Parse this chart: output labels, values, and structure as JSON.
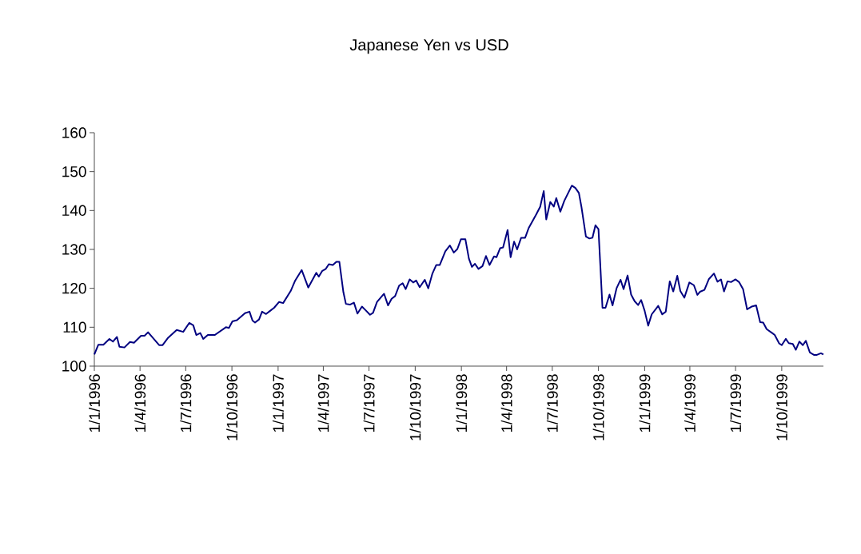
{
  "chart_data": {
    "type": "line",
    "title": "Japanese Yen vs USD",
    "x": [
      "1996-01-01",
      "1996-01-09",
      "1996-01-19",
      "1996-01-31",
      "1996-02-07",
      "1996-02-15",
      "1996-02-20",
      "1996-03-01",
      "1996-03-12",
      "1996-03-20",
      "1996-04-03",
      "1996-04-10",
      "1996-04-17",
      "1996-05-09",
      "1996-05-16",
      "1996-05-27",
      "1996-06-13",
      "1996-06-26",
      "1996-07-08",
      "1996-07-16",
      "1996-07-22",
      "1996-07-30",
      "1996-08-05",
      "1996-08-14",
      "1996-08-28",
      "1996-09-19",
      "1996-09-25",
      "1996-10-02",
      "1996-10-11",
      "1996-10-27",
      "1996-11-05",
      "1996-11-11",
      "1996-11-16",
      "1996-11-24",
      "1996-11-30",
      "1996-12-08",
      "1996-12-16",
      "1996-12-24",
      "1997-01-03",
      "1997-01-11",
      "1997-01-26",
      "1997-02-04",
      "1997-02-17",
      "1997-03-02",
      "1997-03-18",
      "1997-03-23",
      "1997-03-30",
      "1997-04-06",
      "1997-04-12",
      "1997-04-20",
      "1997-04-27",
      "1997-05-03",
      "1997-05-11",
      "1997-05-16",
      "1997-05-24",
      "1997-06-01",
      "1997-06-08",
      "1997-06-17",
      "1997-06-24",
      "1997-07-03",
      "1997-07-09",
      "1997-07-17",
      "1997-07-31",
      "1997-08-08",
      "1997-08-15",
      "1997-08-22",
      "1997-08-30",
      "1997-09-06",
      "1997-09-12",
      "1997-09-20",
      "1997-09-27",
      "1997-10-03",
      "1997-10-10",
      "1997-10-20",
      "1997-10-27",
      "1997-11-04",
      "1997-11-12",
      "1997-11-19",
      "1997-11-30",
      "1997-12-09",
      "1997-12-17",
      "1997-12-24",
      "1997-12-31",
      "1998-01-09",
      "1998-01-16",
      "1998-01-22",
      "1998-01-28",
      "1998-02-04",
      "1998-02-12",
      "1998-02-19",
      "1998-02-26",
      "1998-03-07",
      "1998-03-12",
      "1998-03-19",
      "1998-03-25",
      "1998-04-03",
      "1998-04-09",
      "1998-04-16",
      "1998-04-22",
      "1998-04-30",
      "1998-05-08",
      "1998-05-15",
      "1998-05-30",
      "1998-06-07",
      "1998-06-14",
      "1998-06-19",
      "1998-06-27",
      "1998-07-04",
      "1998-07-09",
      "1998-07-17",
      "1998-07-25",
      "1998-08-09",
      "1998-08-16",
      "1998-08-23",
      "1998-08-28",
      "1998-09-06",
      "1998-09-13",
      "1998-09-19",
      "1998-09-25",
      "1998-10-01",
      "1998-10-09",
      "1998-10-15",
      "1998-10-23",
      "1998-10-29",
      "1998-11-06",
      "1998-11-14",
      "1998-11-20",
      "1998-11-28",
      "1998-12-05",
      "1998-12-12",
      "1998-12-19",
      "1998-12-25",
      "1999-01-01",
      "1999-01-08",
      "1999-01-15",
      "1999-01-28",
      "1999-02-05",
      "1999-02-12",
      "1999-02-20",
      "1999-02-27",
      "1999-03-07",
      "1999-03-13",
      "1999-03-21",
      "1999-03-31",
      "1999-04-09",
      "1999-04-16",
      "1999-04-21",
      "1999-04-30",
      "1999-05-09",
      "1999-05-19",
      "1999-05-26",
      "1999-06-02",
      "1999-06-08",
      "1999-06-15",
      "1999-06-22",
      "1999-07-01",
      "1999-07-08",
      "1999-07-16",
      "1999-07-24",
      "1999-08-02",
      "1999-08-11",
      "1999-08-19",
      "1999-08-25",
      "1999-09-01",
      "1999-09-12",
      "1999-09-17",
      "1999-09-26",
      "1999-10-01",
      "1999-10-09",
      "1999-10-15",
      "1999-10-23",
      "1999-10-29",
      "1999-11-05",
      "1999-11-12",
      "1999-11-18",
      "1999-11-26",
      "1999-12-04",
      "1999-12-10",
      "1999-12-18",
      "1999-12-23"
    ],
    "values": [
      103,
      105.5,
      105.5,
      107,
      106.3,
      107.5,
      105,
      104.8,
      106.2,
      106,
      107.8,
      107.8,
      108.7,
      105.4,
      105.4,
      107.3,
      109.3,
      108.8,
      111.1,
      110.5,
      108,
      108.5,
      107,
      108,
      108,
      110,
      109.8,
      111.5,
      111.8,
      113.6,
      114,
      111.7,
      111.2,
      112,
      114,
      113.4,
      114.2,
      115,
      116.5,
      116.2,
      119.3,
      122,
      124.7,
      120.2,
      124,
      123,
      124.5,
      125,
      126.2,
      126,
      126.8,
      126.8,
      119,
      116,
      115.8,
      116.3,
      113.5,
      115.3,
      114.4,
      113.2,
      113.7,
      116.5,
      118.6,
      115.6,
      117.3,
      118,
      120.7,
      121.3,
      119.8,
      122.3,
      121.5,
      122,
      120.3,
      122.2,
      120,
      123.7,
      126,
      126,
      129.5,
      131,
      129.2,
      130.1,
      132.6,
      132.6,
      127.6,
      125.5,
      126.3,
      125,
      125.7,
      128.3,
      126,
      128.2,
      128,
      130.3,
      130.5,
      135,
      128,
      132,
      130,
      133,
      133,
      135.5,
      139,
      141,
      145,
      137.7,
      142.2,
      141,
      143.2,
      139.7,
      142.5,
      146.4,
      145.8,
      144.5,
      141,
      133.3,
      132.8,
      133,
      136.2,
      135.2,
      115,
      115,
      118.4,
      115.6,
      120,
      122.2,
      119.8,
      123.3,
      118.4,
      116.7,
      115.7,
      117,
      114.2,
      110.4,
      113.3,
      115.5,
      113.3,
      114,
      121.8,
      119.2,
      123.2,
      119.3,
      117.6,
      121.5,
      120.8,
      118.3,
      119.1,
      119.6,
      122.4,
      123.8,
      121.7,
      122.3,
      119.2,
      121.8,
      121.6,
      122.3,
      121.6,
      119.8,
      114.6,
      115.3,
      115.6,
      111.3,
      111.2,
      109.5,
      108.5,
      108,
      105.8,
      105.4,
      107,
      105.9,
      105.7,
      104.2,
      106.3,
      105.4,
      106.5,
      103.5,
      102.9,
      102.9,
      103.3,
      103
    ],
    "color": "#000080",
    "marker": "none",
    "line_style": "solid",
    "xlim": [
      "1996-01-01",
      "1999-12-23"
    ],
    "ylim": [
      100,
      160
    ],
    "yticks": [
      100,
      110,
      120,
      130,
      140,
      150,
      160
    ],
    "xticks": [
      {
        "value": "1996-01-01",
        "label": "1/1/1996"
      },
      {
        "value": "1996-04-01",
        "label": "1/4/1996"
      },
      {
        "value": "1996-07-01",
        "label": "1/7/1996"
      },
      {
        "value": "1996-10-01",
        "label": "1/10/1996"
      },
      {
        "value": "1997-01-01",
        "label": "1/1/1997"
      },
      {
        "value": "1997-04-01",
        "label": "1/4/1997"
      },
      {
        "value": "1997-07-01",
        "label": "1/7/1997"
      },
      {
        "value": "1997-10-01",
        "label": "1/10/1997"
      },
      {
        "value": "1998-01-01",
        "label": "1/1/1998"
      },
      {
        "value": "1998-04-01",
        "label": "1/4/1998"
      },
      {
        "value": "1998-07-01",
        "label": "1/7/1998"
      },
      {
        "value": "1998-10-01",
        "label": "1/10/1998"
      },
      {
        "value": "1999-01-01",
        "label": "1/1/1999"
      },
      {
        "value": "1999-04-01",
        "label": "1/4/1999"
      },
      {
        "value": "1999-07-01",
        "label": "1/7/1999"
      },
      {
        "value": "1999-10-01",
        "label": "1/10/1999"
      }
    ]
  }
}
